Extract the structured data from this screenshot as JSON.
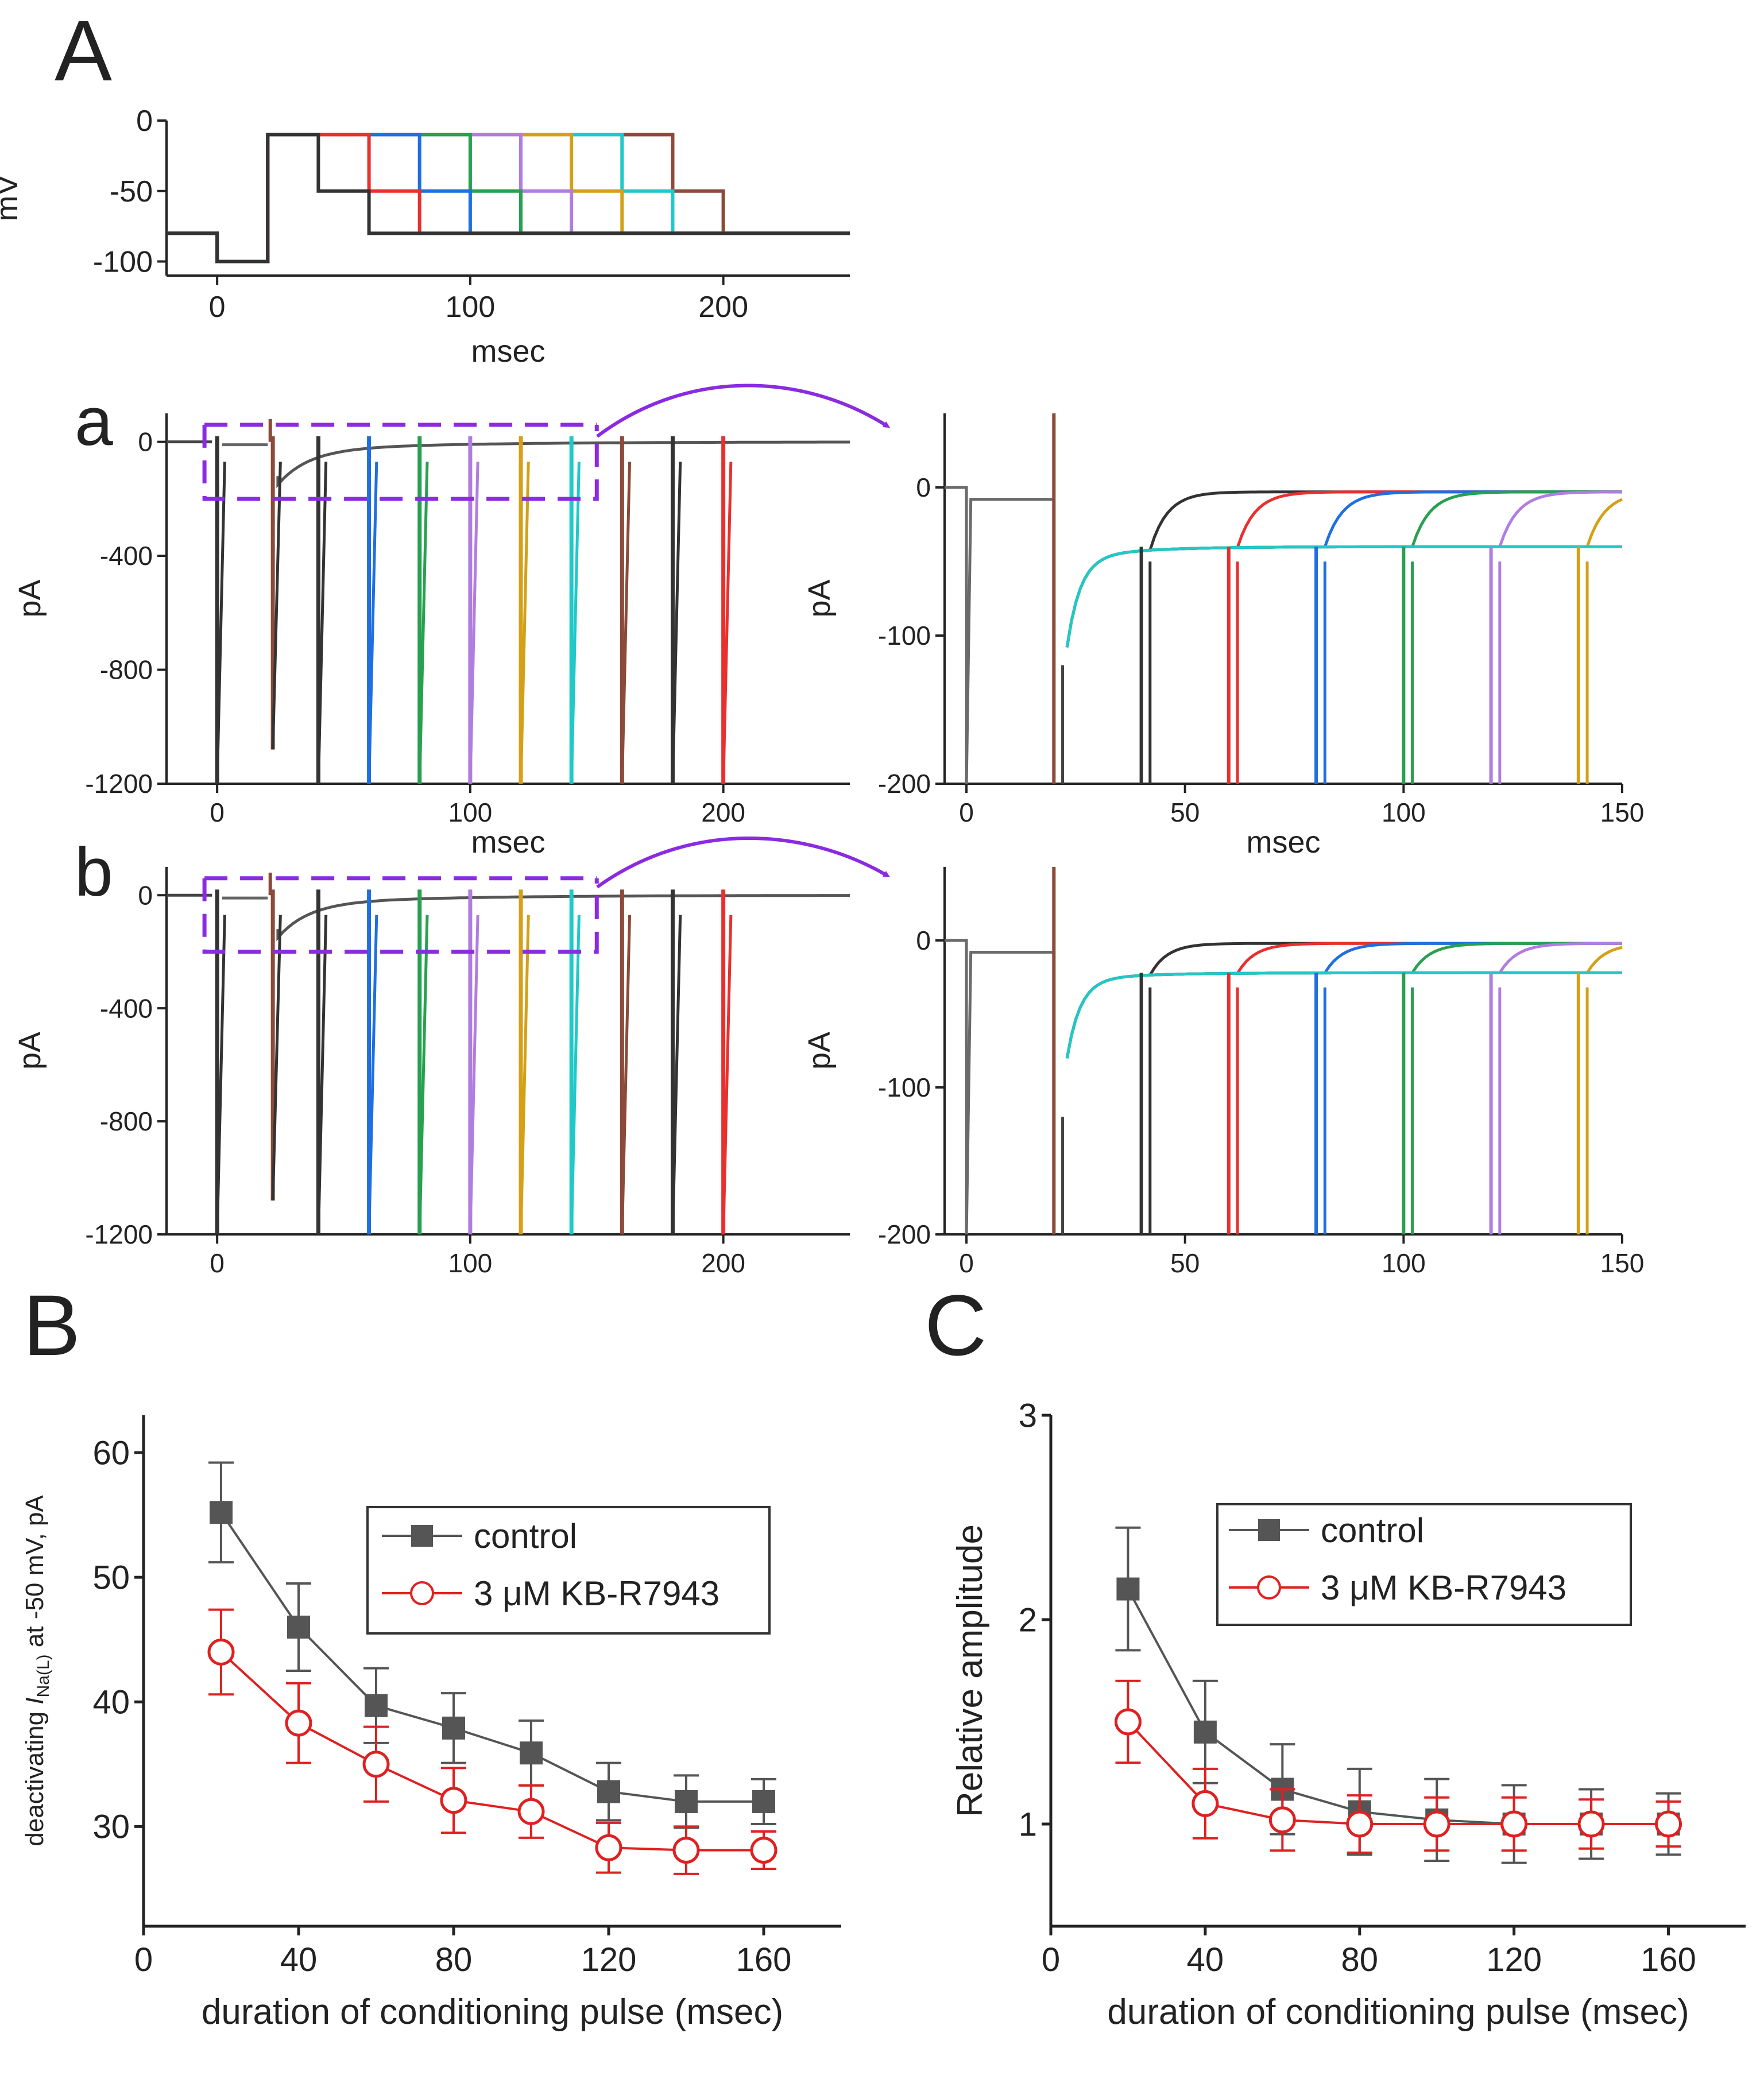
{
  "figure": {
    "panel_A_letter": "A",
    "panel_a_letter": "a",
    "panel_b_letter": "b",
    "panel_B_letter": "B",
    "panel_C_letter": "C"
  },
  "trace_colors": [
    "#333333",
    "#e8302f",
    "#1f6fe0",
    "#27a050",
    "#b07de0",
    "#d4a017",
    "#20c8c8",
    "#8b4a3a"
  ],
  "chart_data": [
    {
      "id": "A",
      "type": "line",
      "title": "",
      "xlabel": "msec",
      "ylabel": "mV",
      "xlim": [
        -20,
        250
      ],
      "ylim": [
        -110,
        0
      ],
      "xticks": [
        0,
        100,
        200
      ],
      "yticks": [
        0,
        -50,
        -100
      ],
      "holding_mV": -80,
      "prepulse_mV": -100,
      "test_mV": -10,
      "conditioning_mV": -50,
      "prepulse_start_ms": 0,
      "test_start_ms": 20,
      "condition_end_ms": [
        40,
        60,
        80,
        100,
        120,
        140,
        160,
        180
      ],
      "step_end_ms": [
        60,
        80,
        100,
        120,
        140,
        160,
        180,
        200
      ]
    },
    {
      "id": "a-left",
      "type": "line",
      "xlabel": "msec",
      "ylabel": "pA",
      "xlim": [
        -20,
        250
      ],
      "ylim": [
        -1200,
        100
      ],
      "xticks": [
        0,
        100,
        200
      ],
      "yticks": [
        0,
        -400,
        -800,
        -1200
      ],
      "spike_times_ms": [
        0,
        22,
        40,
        60,
        80,
        100,
        120,
        140,
        160,
        180,
        200
      ],
      "zoom_box_ms": [
        -5,
        150
      ],
      "zoom_box_pA": [
        60,
        -200
      ]
    },
    {
      "id": "a-right",
      "type": "line",
      "xlabel": "msec",
      "ylabel": "pA",
      "xlim": [
        -5,
        150
      ],
      "ylim": [
        -200,
        50
      ],
      "xticks": [
        0,
        50,
        100,
        150
      ],
      "yticks": [
        0,
        -100,
        -200
      ],
      "plateau_pA": -40,
      "early_pA": -60,
      "recovered_pA": -3,
      "spike_times_ms": [
        40,
        60,
        80,
        100,
        120,
        140
      ]
    },
    {
      "id": "b-left",
      "type": "line",
      "xlabel": "msec",
      "ylabel": "pA",
      "xlim": [
        -20,
        250
      ],
      "ylim": [
        -1200,
        100
      ],
      "xticks": [
        0,
        100,
        200
      ],
      "yticks": [
        0,
        -400,
        -800,
        -1200
      ],
      "spike_times_ms": [
        0,
        22,
        40,
        60,
        80,
        100,
        120,
        140,
        160,
        180,
        200
      ],
      "zoom_box_ms": [
        -5,
        150
      ],
      "zoom_box_pA": [
        60,
        -200
      ]
    },
    {
      "id": "b-right",
      "type": "line",
      "xlabel": "msec",
      "ylabel": "pA",
      "xlim": [
        -5,
        150
      ],
      "ylim": [
        -200,
        50
      ],
      "xticks": [
        0,
        50,
        100,
        150
      ],
      "yticks": [
        0,
        -100,
        -200
      ],
      "plateau_pA": -22,
      "early_pA": -35,
      "recovered_pA": -2,
      "spike_times_ms": [
        40,
        60,
        80,
        100,
        120,
        140
      ]
    },
    {
      "id": "B",
      "type": "line",
      "xlabel": "duration of conditioning pulse (msec)",
      "ylabel_pre": "deactivating ",
      "ylabel_I": "I",
      "ylabel_sub": "Na(L)",
      "ylabel_post": " at -50 mV, pA",
      "xlim": [
        0,
        180
      ],
      "ylim": [
        22,
        63
      ],
      "xticks": [
        0,
        40,
        80,
        120,
        160
      ],
      "yticks": [
        30,
        40,
        50,
        60
      ],
      "x": [
        20,
        40,
        60,
        80,
        100,
        120,
        140,
        160
      ],
      "series": [
        {
          "name": "control",
          "values": [
            55.2,
            46.0,
            39.7,
            37.9,
            35.9,
            32.8,
            32.0,
            32.0
          ],
          "err": [
            4.0,
            3.5,
            3.0,
            2.8,
            2.6,
            2.3,
            2.1,
            1.8
          ],
          "color": "#555555",
          "marker": "square-filled"
        },
        {
          "name": "3 μM KB-R7943",
          "values": [
            44.0,
            38.3,
            35.0,
            32.1,
            31.2,
            28.3,
            28.1,
            28.1
          ],
          "err": [
            3.4,
            3.2,
            3.0,
            2.6,
            2.1,
            2.0,
            1.9,
            1.5
          ],
          "color": "#e02020",
          "marker": "circle-open"
        }
      ]
    },
    {
      "id": "C",
      "type": "line",
      "xlabel": "duration of conditioning pulse  (msec)",
      "ylabel": "Relative amplitude",
      "xlim": [
        0,
        180
      ],
      "ylim": [
        0.5,
        3
      ],
      "xticks": [
        0,
        40,
        80,
        120,
        160
      ],
      "yticks": [
        1,
        2,
        3
      ],
      "x": [
        20,
        40,
        60,
        80,
        100,
        120,
        140,
        160
      ],
      "series": [
        {
          "name": "control",
          "values": [
            2.15,
            1.45,
            1.17,
            1.06,
            1.02,
            1.0,
            1.0,
            1.0
          ],
          "err": [
            0.3,
            0.25,
            0.22,
            0.21,
            0.2,
            0.19,
            0.17,
            0.15
          ],
          "color": "#555555",
          "marker": "square-filled"
        },
        {
          "name": "3 μM KB-R7943",
          "values": [
            1.5,
            1.1,
            1.02,
            1.0,
            1.0,
            1.0,
            1.0,
            1.0
          ],
          "err": [
            0.2,
            0.17,
            0.15,
            0.14,
            0.13,
            0.13,
            0.12,
            0.11
          ],
          "color": "#e02020",
          "marker": "circle-open"
        }
      ]
    }
  ]
}
